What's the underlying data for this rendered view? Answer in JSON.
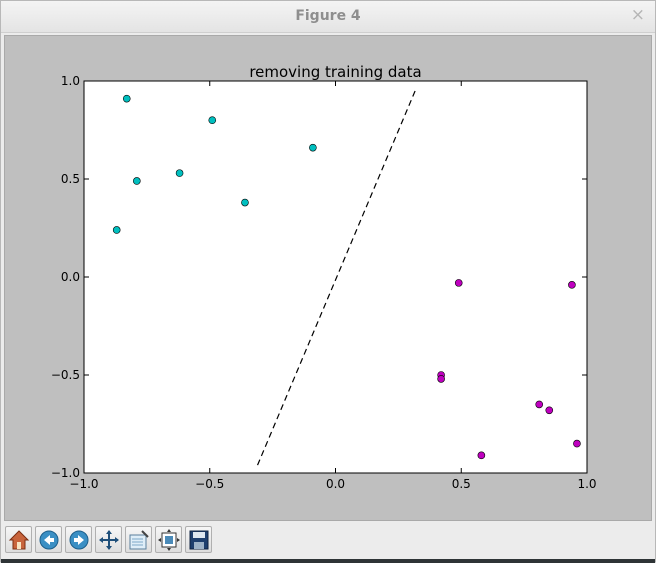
{
  "window": {
    "title": "Figure 4",
    "close_glyph": "×"
  },
  "toolbar": {
    "buttons": [
      {
        "icon": "home-icon"
      },
      {
        "icon": "back-icon"
      },
      {
        "icon": "forward-icon"
      },
      {
        "icon": "pan-icon"
      },
      {
        "icon": "zoom-to-rect-icon"
      },
      {
        "icon": "subplots-icon"
      },
      {
        "icon": "save-icon"
      }
    ]
  },
  "colors": {
    "class_a": "#00bfbf",
    "class_b": "#bf00bf",
    "boundary": "#000000"
  },
  "chart_data": {
    "type": "scatter",
    "title": "removing training data",
    "xlabel": "",
    "ylabel": "",
    "xlim": [
      -1.0,
      1.0
    ],
    "ylim": [
      -1.0,
      1.0
    ],
    "xticks": [
      "−1.0",
      "−0.5",
      "0.0",
      "0.5",
      "1.0"
    ],
    "yticks": [
      "−1.0",
      "−0.5",
      "0.0",
      "0.5",
      "1.0"
    ],
    "xtick_values": [
      -1.0,
      -0.5,
      0.0,
      0.5,
      1.0
    ],
    "ytick_values": [
      -1.0,
      -0.5,
      0.0,
      0.5,
      1.0
    ],
    "grid": false,
    "series": [
      {
        "color": "#00bfbf",
        "x": [
          -0.83,
          -0.49,
          -0.79,
          -0.62,
          -0.87,
          -0.36,
          -0.09
        ],
        "y": [
          0.91,
          0.8,
          0.49,
          0.53,
          0.24,
          0.38,
          0.66
        ]
      },
      {
        "color": "#bf00bf",
        "x": [
          0.49,
          0.94,
          0.42,
          0.42,
          0.81,
          0.85,
          0.58,
          0.96
        ],
        "y": [
          -0.03,
          -0.04,
          -0.5,
          -0.52,
          -0.65,
          -0.68,
          -0.91,
          -0.85
        ]
      }
    ],
    "boundary": {
      "style": "dashed",
      "x": [
        -0.31,
        0.32
      ],
      "y": [
        -0.96,
        0.96
      ]
    }
  }
}
